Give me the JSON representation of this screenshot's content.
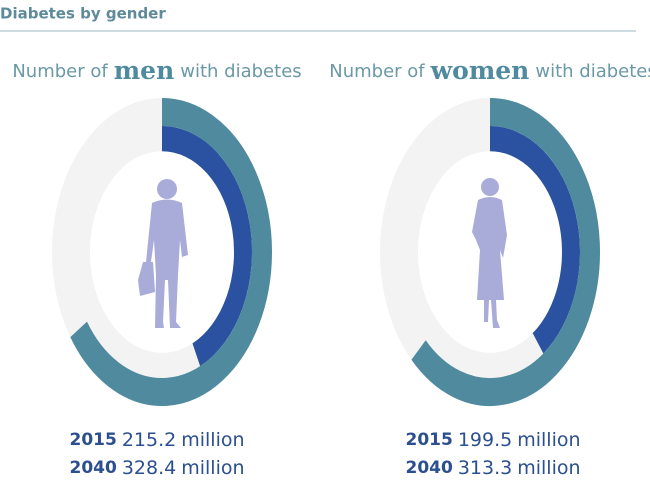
{
  "title": "Diabetes by gender",
  "chart_data": [
    {
      "type": "radial",
      "title_parts": [
        "Number of",
        "men",
        "with diabetes"
      ],
      "categories": [
        "2015",
        "2040"
      ],
      "values": [
        215.2,
        328.4
      ],
      "unit": "million",
      "colors": [
        "#2b52a0",
        "#4f8a9e"
      ],
      "track_color": "#f3f3f3",
      "rlim": [
        0,
        500
      ]
    },
    {
      "type": "radial",
      "title_parts": [
        "Number of",
        "women",
        "with diabetes"
      ],
      "categories": [
        "2015",
        "2040"
      ],
      "values": [
        199.5,
        313.3
      ],
      "unit": "million",
      "colors": [
        "#2b52a0",
        "#4f8a9e"
      ],
      "track_color": "#f3f3f3",
      "rlim": [
        0,
        500
      ]
    }
  ]
}
